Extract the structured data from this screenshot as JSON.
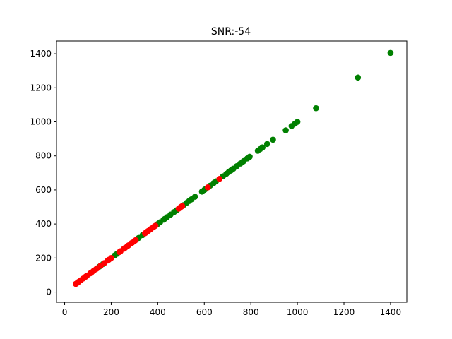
{
  "chart_data": {
    "type": "scatter",
    "title": "SNR:-54",
    "xlabel": "",
    "ylabel": "",
    "xlim": [
      -35,
      1470
    ],
    "ylim": [
      -60,
      1475
    ],
    "xticks": [
      0,
      200,
      400,
      600,
      800,
      1000,
      1200,
      1400
    ],
    "yticks": [
      0,
      200,
      400,
      600,
      800,
      1000,
      1200,
      1400
    ],
    "grid": false,
    "series": [
      {
        "name": "green",
        "color": "#008000",
        "points": [
          [
            150,
            150
          ],
          [
            165,
            165
          ],
          [
            215,
            215
          ],
          [
            225,
            225
          ],
          [
            318,
            318
          ],
          [
            335,
            335
          ],
          [
            400,
            400
          ],
          [
            410,
            410
          ],
          [
            425,
            425
          ],
          [
            430,
            430
          ],
          [
            440,
            440
          ],
          [
            455,
            455
          ],
          [
            470,
            470
          ],
          [
            480,
            480
          ],
          [
            510,
            510
          ],
          [
            525,
            525
          ],
          [
            535,
            535
          ],
          [
            545,
            545
          ],
          [
            560,
            560
          ],
          [
            590,
            590
          ],
          [
            600,
            600
          ],
          [
            605,
            605
          ],
          [
            625,
            625
          ],
          [
            640,
            640
          ],
          [
            650,
            650
          ],
          [
            680,
            680
          ],
          [
            695,
            695
          ],
          [
            705,
            705
          ],
          [
            715,
            715
          ],
          [
            725,
            725
          ],
          [
            740,
            740
          ],
          [
            755,
            755
          ],
          [
            765,
            765
          ],
          [
            770,
            770
          ],
          [
            785,
            785
          ],
          [
            795,
            795
          ],
          [
            830,
            830
          ],
          [
            840,
            840
          ],
          [
            850,
            850
          ],
          [
            870,
            870
          ],
          [
            895,
            895
          ],
          [
            950,
            950
          ],
          [
            975,
            975
          ],
          [
            990,
            990
          ],
          [
            1000,
            1000
          ],
          [
            1080,
            1080
          ],
          [
            1260,
            1260
          ],
          [
            1400,
            1405
          ]
        ]
      },
      {
        "name": "red",
        "color": "#ff0000",
        "points": [
          [
            48,
            48
          ],
          [
            55,
            55
          ],
          [
            60,
            60
          ],
          [
            70,
            70
          ],
          [
            80,
            80
          ],
          [
            90,
            90
          ],
          [
            95,
            95
          ],
          [
            110,
            110
          ],
          [
            115,
            115
          ],
          [
            125,
            125
          ],
          [
            135,
            135
          ],
          [
            140,
            140
          ],
          [
            155,
            155
          ],
          [
            170,
            170
          ],
          [
            185,
            185
          ],
          [
            190,
            190
          ],
          [
            200,
            200
          ],
          [
            235,
            235
          ],
          [
            240,
            240
          ],
          [
            255,
            255
          ],
          [
            260,
            260
          ],
          [
            270,
            270
          ],
          [
            275,
            275
          ],
          [
            285,
            285
          ],
          [
            290,
            290
          ],
          [
            300,
            300
          ],
          [
            305,
            305
          ],
          [
            345,
            345
          ],
          [
            350,
            350
          ],
          [
            355,
            355
          ],
          [
            360,
            360
          ],
          [
            370,
            370
          ],
          [
            380,
            380
          ],
          [
            385,
            385
          ],
          [
            390,
            390
          ],
          [
            490,
            490
          ],
          [
            495,
            495
          ],
          [
            500,
            500
          ],
          [
            505,
            505
          ],
          [
            615,
            615
          ],
          [
            665,
            665
          ]
        ]
      }
    ]
  }
}
